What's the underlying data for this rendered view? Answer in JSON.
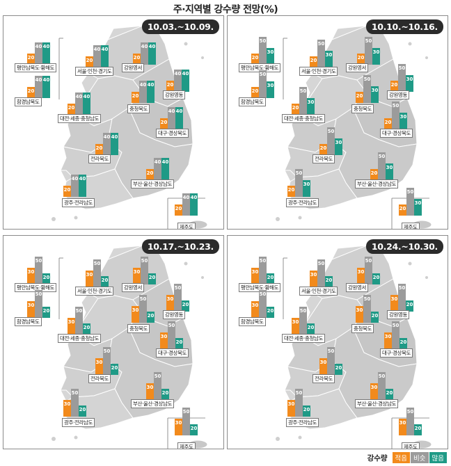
{
  "title": "주·지역별 강수량 전망(%)",
  "legend": {
    "title": "강수량",
    "items": [
      {
        "label": "적음",
        "color": "#f28a1c"
      },
      {
        "label": "비슷",
        "color": "#9b9b9b"
      },
      {
        "label": "많음",
        "color": "#1f9a86"
      }
    ]
  },
  "chart_data": {
    "type": "bar",
    "categories_legend": [
      "적음",
      "비슷",
      "많음"
    ],
    "regions": [
      "평안남북도·황해도",
      "함경남북도",
      "서울·인천·경기도",
      "강원영서",
      "강원영동",
      "충청북도",
      "대전·세종·충청남도",
      "대구·경상북도",
      "전라북도",
      "부산·울산·경상남도",
      "광주·전라남도",
      "제주도"
    ],
    "panels": [
      {
        "period": "10.03.~10.09.",
        "values": [
          [
            20,
            40,
            40
          ],
          [
            20,
            40,
            40
          ],
          [
            20,
            40,
            40
          ],
          [
            20,
            40,
            40
          ],
          [
            20,
            40,
            40
          ],
          [
            20,
            40,
            40
          ],
          [
            20,
            40,
            40
          ],
          [
            20,
            40,
            40
          ],
          [
            20,
            40,
            40
          ],
          [
            20,
            40,
            40
          ],
          [
            20,
            40,
            40
          ],
          [
            20,
            40,
            40
          ]
        ]
      },
      {
        "period": "10.10.~10.16.",
        "values": [
          [
            20,
            50,
            30
          ],
          [
            20,
            50,
            30
          ],
          [
            20,
            50,
            30
          ],
          [
            20,
            50,
            30
          ],
          [
            20,
            50,
            30
          ],
          [
            20,
            50,
            30
          ],
          [
            20,
            50,
            30
          ],
          [
            20,
            50,
            30
          ],
          [
            20,
            50,
            30
          ],
          [
            20,
            50,
            30
          ],
          [
            20,
            50,
            30
          ],
          [
            20,
            50,
            30
          ]
        ]
      },
      {
        "period": "10.17.~10.23.",
        "values": [
          [
            30,
            50,
            20
          ],
          [
            30,
            50,
            20
          ],
          [
            30,
            50,
            20
          ],
          [
            30,
            50,
            20
          ],
          [
            30,
            50,
            20
          ],
          [
            30,
            50,
            20
          ],
          [
            30,
            50,
            20
          ],
          [
            30,
            50,
            20
          ],
          [
            30,
            50,
            20
          ],
          [
            30,
            50,
            20
          ],
          [
            30,
            50,
            20
          ],
          [
            30,
            50,
            20
          ]
        ]
      },
      {
        "period": "10.24.~10.30.",
        "values": [
          [
            30,
            50,
            20
          ],
          [
            30,
            50,
            20
          ],
          [
            30,
            50,
            20
          ],
          [
            30,
            50,
            20
          ],
          [
            30,
            50,
            20
          ],
          [
            30,
            50,
            20
          ],
          [
            30,
            50,
            20
          ],
          [
            30,
            50,
            20
          ],
          [
            30,
            50,
            20
          ],
          [
            30,
            50,
            20
          ],
          [
            30,
            50,
            20
          ],
          [
            30,
            50,
            20
          ]
        ]
      }
    ]
  }
}
